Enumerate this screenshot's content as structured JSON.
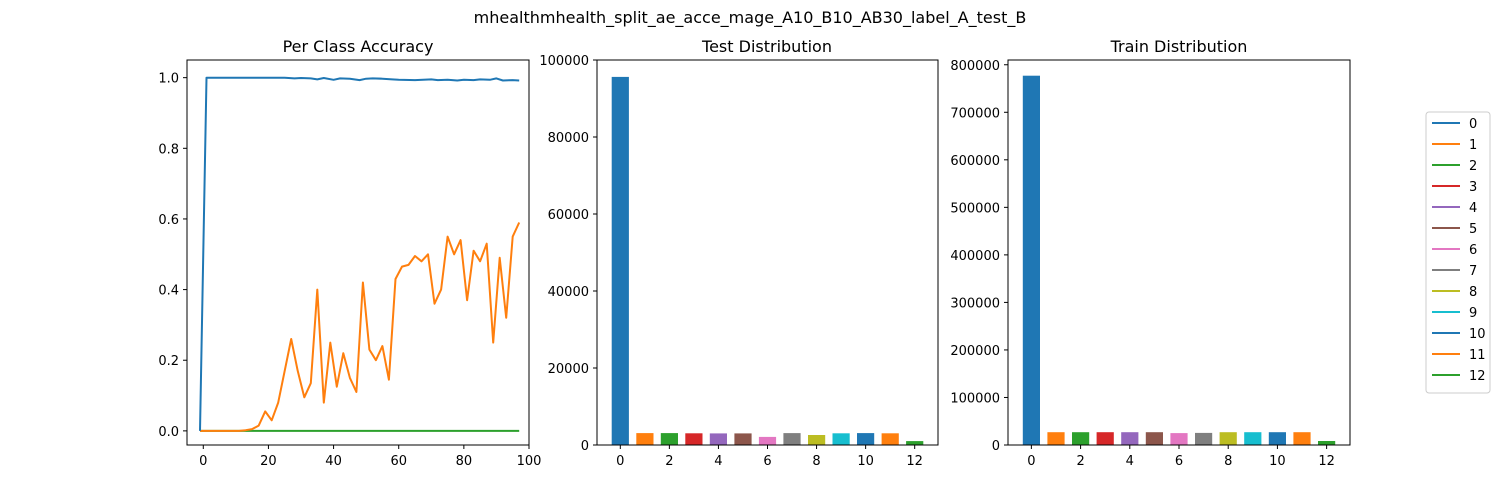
{
  "figure": {
    "suptitle": "mhealthmhealth_split_ae_acce_mage_A10_B10_AB30_label_A_test_B"
  },
  "palette": [
    "#1f77b4",
    "#ff7f0e",
    "#2ca02c",
    "#d62728",
    "#9467bd",
    "#8c564b",
    "#e377c2",
    "#7f7f7f",
    "#bcbd22",
    "#17becf",
    "#1f77b4",
    "#ff7f0e",
    "#2ca02c"
  ],
  "legend": {
    "placement": "right",
    "labels": [
      "0",
      "1",
      "2",
      "3",
      "4",
      "5",
      "6",
      "7",
      "8",
      "9",
      "10",
      "11",
      "12"
    ]
  },
  "chart_data": [
    {
      "type": "line",
      "title": "Per Class Accuracy",
      "xlim": [
        -5,
        100
      ],
      "ylim": [
        -0.04,
        1.05
      ],
      "xticks": [
        0,
        20,
        40,
        60,
        80,
        100
      ],
      "yticks": [
        0.0,
        0.2,
        0.4,
        0.6,
        0.8,
        1.0
      ],
      "series": [
        {
          "label": "0",
          "color": "#1f77b4",
          "x": [
            -1,
            1,
            5,
            10,
            15,
            20,
            25,
            28,
            30,
            33,
            35,
            37,
            40,
            42,
            45,
            48,
            50,
            52,
            55,
            58,
            60,
            65,
            70,
            72,
            75,
            78,
            80,
            83,
            85,
            88,
            90,
            92,
            95,
            97
          ],
          "y": [
            0.0,
            1.0,
            1.0,
            1.0,
            1.0,
            1.0,
            1.0,
            0.998,
            0.999,
            0.998,
            0.995,
            0.999,
            0.994,
            0.998,
            0.997,
            0.993,
            0.997,
            0.998,
            0.997,
            0.995,
            0.994,
            0.993,
            0.995,
            0.993,
            0.994,
            0.992,
            0.994,
            0.993,
            0.995,
            0.994,
            0.998,
            0.992,
            0.993,
            0.992
          ]
        },
        {
          "label": "1",
          "color": "#ff7f0e",
          "x": [
            -1,
            1,
            3,
            5,
            7,
            9,
            11,
            13,
            15,
            17,
            19,
            21,
            23,
            25,
            27,
            29,
            31,
            33,
            35,
            37,
            39,
            41,
            43,
            45,
            47,
            49,
            51,
            53,
            55,
            57,
            59,
            61,
            63,
            65,
            67,
            69,
            71,
            73,
            75,
            77,
            79,
            81,
            83,
            85,
            87,
            89,
            91,
            93,
            95,
            97
          ],
          "y": [
            0,
            0,
            0,
            0,
            0,
            0,
            0,
            0.002,
            0.005,
            0.015,
            0.055,
            0.03,
            0.08,
            0.17,
            0.26,
            0.17,
            0.095,
            0.135,
            0.4,
            0.08,
            0.25,
            0.125,
            0.22,
            0.15,
            0.11,
            0.42,
            0.23,
            0.2,
            0.24,
            0.145,
            0.43,
            0.465,
            0.47,
            0.495,
            0.48,
            0.5,
            0.36,
            0.4,
            0.55,
            0.5,
            0.54,
            0.37,
            0.51,
            0.48,
            0.53,
            0.25,
            0.49,
            0.32,
            0.55,
            0.59
          ]
        },
        {
          "label": "2",
          "color": "#2ca02c",
          "x": [
            -1,
            97
          ],
          "y": [
            0.0,
            0.0
          ]
        }
      ]
    },
    {
      "type": "bar",
      "title": "Test Distribution",
      "ylim": [
        0,
        100000
      ],
      "xticks": [
        0,
        2,
        4,
        6,
        8,
        10,
        12
      ],
      "yticks": [
        0,
        20000,
        40000,
        60000,
        80000,
        100000
      ],
      "categories": [
        0,
        1,
        2,
        3,
        4,
        5,
        6,
        7,
        8,
        9,
        10,
        11,
        12
      ],
      "values": [
        95600,
        3100,
        3100,
        3050,
        3000,
        3000,
        2100,
        3100,
        2600,
        3050,
        3100,
        3050,
        1000
      ]
    },
    {
      "type": "bar",
      "title": "Train Distribution",
      "ylim": [
        0,
        810000
      ],
      "xticks": [
        0,
        2,
        4,
        6,
        8,
        10,
        12
      ],
      "yticks": [
        0,
        100000,
        200000,
        300000,
        400000,
        500000,
        600000,
        700000,
        800000
      ],
      "categories": [
        0,
        1,
        2,
        3,
        4,
        5,
        6,
        7,
        8,
        9,
        10,
        11,
        12
      ],
      "values": [
        777000,
        27000,
        27000,
        27000,
        27000,
        27000,
        25000,
        25500,
        27000,
        27000,
        27000,
        27000,
        8500
      ]
    }
  ]
}
